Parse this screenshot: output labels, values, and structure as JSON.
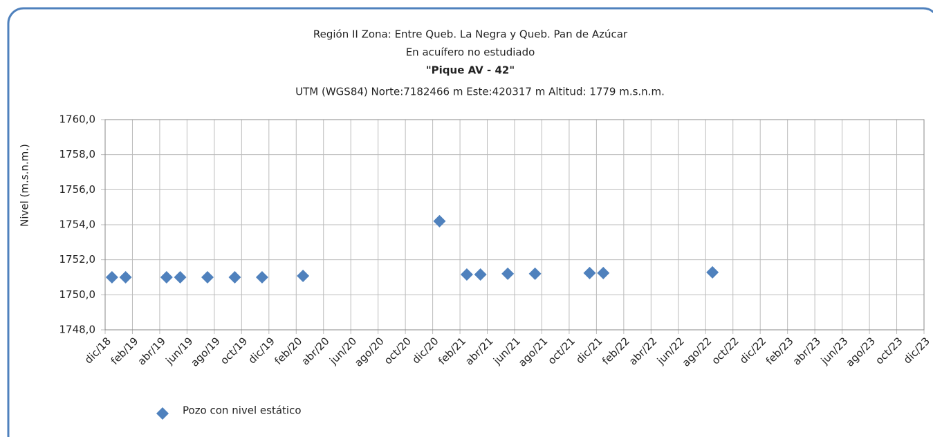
{
  "chart_data": {
    "type": "scatter",
    "title": [
      "Región II  Zona: Entre Queb. La Negra y Queb. Pan de Azúcar",
      "En acuífero no estudiado",
      "\"Pique AV - 42\"",
      "UTM (WGS84) Norte:7182466 m   Este:420317 m Altitud: 1779 m.s.n.m."
    ],
    "y_label": "Nivel (m.s.n.m.)",
    "xlim": [
      "2018-12",
      "2023-12"
    ],
    "xticks": [
      {
        "value": "2018-12",
        "label": "dic/18"
      },
      {
        "value": "2019-02",
        "label": "feb/19"
      },
      {
        "value": "2019-04",
        "label": "abr/19"
      },
      {
        "value": "2019-06",
        "label": "jun/19"
      },
      {
        "value": "2019-08",
        "label": "ago/19"
      },
      {
        "value": "2019-10",
        "label": "oct/19"
      },
      {
        "value": "2019-12",
        "label": "dic/19"
      },
      {
        "value": "2020-02",
        "label": "feb/20"
      },
      {
        "value": "2020-04",
        "label": "abr/20"
      },
      {
        "value": "2020-06",
        "label": "jun/20"
      },
      {
        "value": "2020-08",
        "label": "ago/20"
      },
      {
        "value": "2020-10",
        "label": "oct/20"
      },
      {
        "value": "2020-12",
        "label": "dic/20"
      },
      {
        "value": "2021-02",
        "label": "feb/21"
      },
      {
        "value": "2021-04",
        "label": "abr/21"
      },
      {
        "value": "2021-06",
        "label": "jun/21"
      },
      {
        "value": "2021-08",
        "label": "ago/21"
      },
      {
        "value": "2021-10",
        "label": "oct/21"
      },
      {
        "value": "2021-12",
        "label": "dic/21"
      },
      {
        "value": "2022-02",
        "label": "feb/22"
      },
      {
        "value": "2022-04",
        "label": "abr/22"
      },
      {
        "value": "2022-06",
        "label": "jun/22"
      },
      {
        "value": "2022-08",
        "label": "ago/22"
      },
      {
        "value": "2022-10",
        "label": "oct/22"
      },
      {
        "value": "2022-12",
        "label": "dic/22"
      },
      {
        "value": "2023-02",
        "label": "feb/23"
      },
      {
        "value": "2023-04",
        "label": "abr/23"
      },
      {
        "value": "2023-06",
        "label": "jun/23"
      },
      {
        "value": "2023-08",
        "label": "ago/23"
      },
      {
        "value": "2023-10",
        "label": "oct/23"
      },
      {
        "value": "2023-12",
        "label": "dic/23"
      }
    ],
    "ylim": [
      1748,
      1760
    ],
    "yticks": [
      {
        "value": 1748,
        "label": "1748,0"
      },
      {
        "value": 1750,
        "label": "1750,0"
      },
      {
        "value": 1752,
        "label": "1752,0"
      },
      {
        "value": 1754,
        "label": "1754,0"
      },
      {
        "value": 1756,
        "label": "1756,0"
      },
      {
        "value": 1758,
        "label": "1758,0"
      },
      {
        "value": 1760,
        "label": "1760,0"
      }
    ],
    "grid": true,
    "series": [
      {
        "name": "Pozo con nivel estático",
        "color": "#4f81bd",
        "x": [
          "2018-12",
          "2019-01",
          "2019-04",
          "2019-05",
          "2019-07",
          "2019-09",
          "2019-11",
          "2020-02",
          "2020-12",
          "2021-02",
          "2021-03",
          "2021-05",
          "2021-07",
          "2021-11",
          "2021-12",
          "2022-08"
        ],
        "values": [
          1751.0,
          1751.0,
          1751.0,
          1751.0,
          1751.0,
          1751.0,
          1751.0,
          1751.08,
          1754.2,
          1751.16,
          1751.16,
          1751.2,
          1751.2,
          1751.24,
          1751.24,
          1751.28
        ]
      }
    ]
  }
}
